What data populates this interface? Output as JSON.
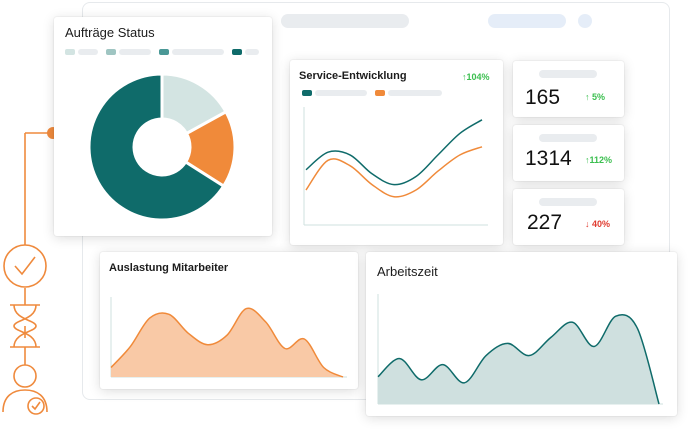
{
  "colors": {
    "teal": "#0f6b6a",
    "orange": "#f08a3a",
    "light_teal": "#d3e4e2",
    "peach": "#f9c9a6",
    "gray_teal_fill": "#cfe0df",
    "check_orange": "#ef8a3d"
  },
  "orders_status": {
    "title": "Aufträge Status",
    "chart_data": {
      "type": "pie",
      "slices": [
        {
          "label": "",
          "value": 17,
          "color": "#d3e4e2"
        },
        {
          "label": "",
          "value": 17,
          "color": "#f08a3a"
        },
        {
          "label": "",
          "value": 66,
          "color": "#0f6b6a"
        }
      ]
    }
  },
  "service": {
    "title": "Service-Entwicklung",
    "delta": "↑104%",
    "chart_data": {
      "type": "line",
      "x": [
        0,
        1,
        2,
        3,
        4,
        5,
        6,
        7,
        8
      ],
      "series": [
        {
          "values": [
            35,
            48,
            46,
            32,
            24,
            30,
            46,
            62,
            72
          ],
          "color": "#0f6b6a"
        },
        {
          "values": [
            20,
            42,
            38,
            24,
            15,
            20,
            34,
            46,
            52
          ],
          "color": "#f08a3a"
        }
      ]
    }
  },
  "kpis": [
    {
      "value": "165",
      "delta": "↑ 5%",
      "direction": "up"
    },
    {
      "value": "1314",
      "delta": "↑112%",
      "direction": "up"
    },
    {
      "value": "227",
      "delta": "↓ 40%",
      "direction": "down"
    }
  ],
  "utilization": {
    "title": "Auslastung Mitarbeiter",
    "chart_data": {
      "type": "area",
      "x": [
        0,
        1,
        2,
        3,
        4,
        5,
        6,
        7,
        8,
        9,
        10,
        11,
        12
      ],
      "values": [
        10,
        32,
        62,
        66,
        46,
        34,
        44,
        72,
        58,
        30,
        40,
        10,
        0
      ]
    }
  },
  "worktime": {
    "title": "Arbeitszeit",
    "chart_data": {
      "type": "area",
      "x": [
        0,
        1,
        2,
        3,
        4,
        5,
        6,
        7,
        8,
        9,
        10,
        11,
        12,
        13
      ],
      "values": [
        18,
        30,
        16,
        26,
        14,
        32,
        40,
        32,
        44,
        54,
        38,
        58,
        50,
        0
      ]
    }
  },
  "workflow_icons": [
    "check-circle-icon",
    "hourglass-icon",
    "user-check-icon"
  ]
}
